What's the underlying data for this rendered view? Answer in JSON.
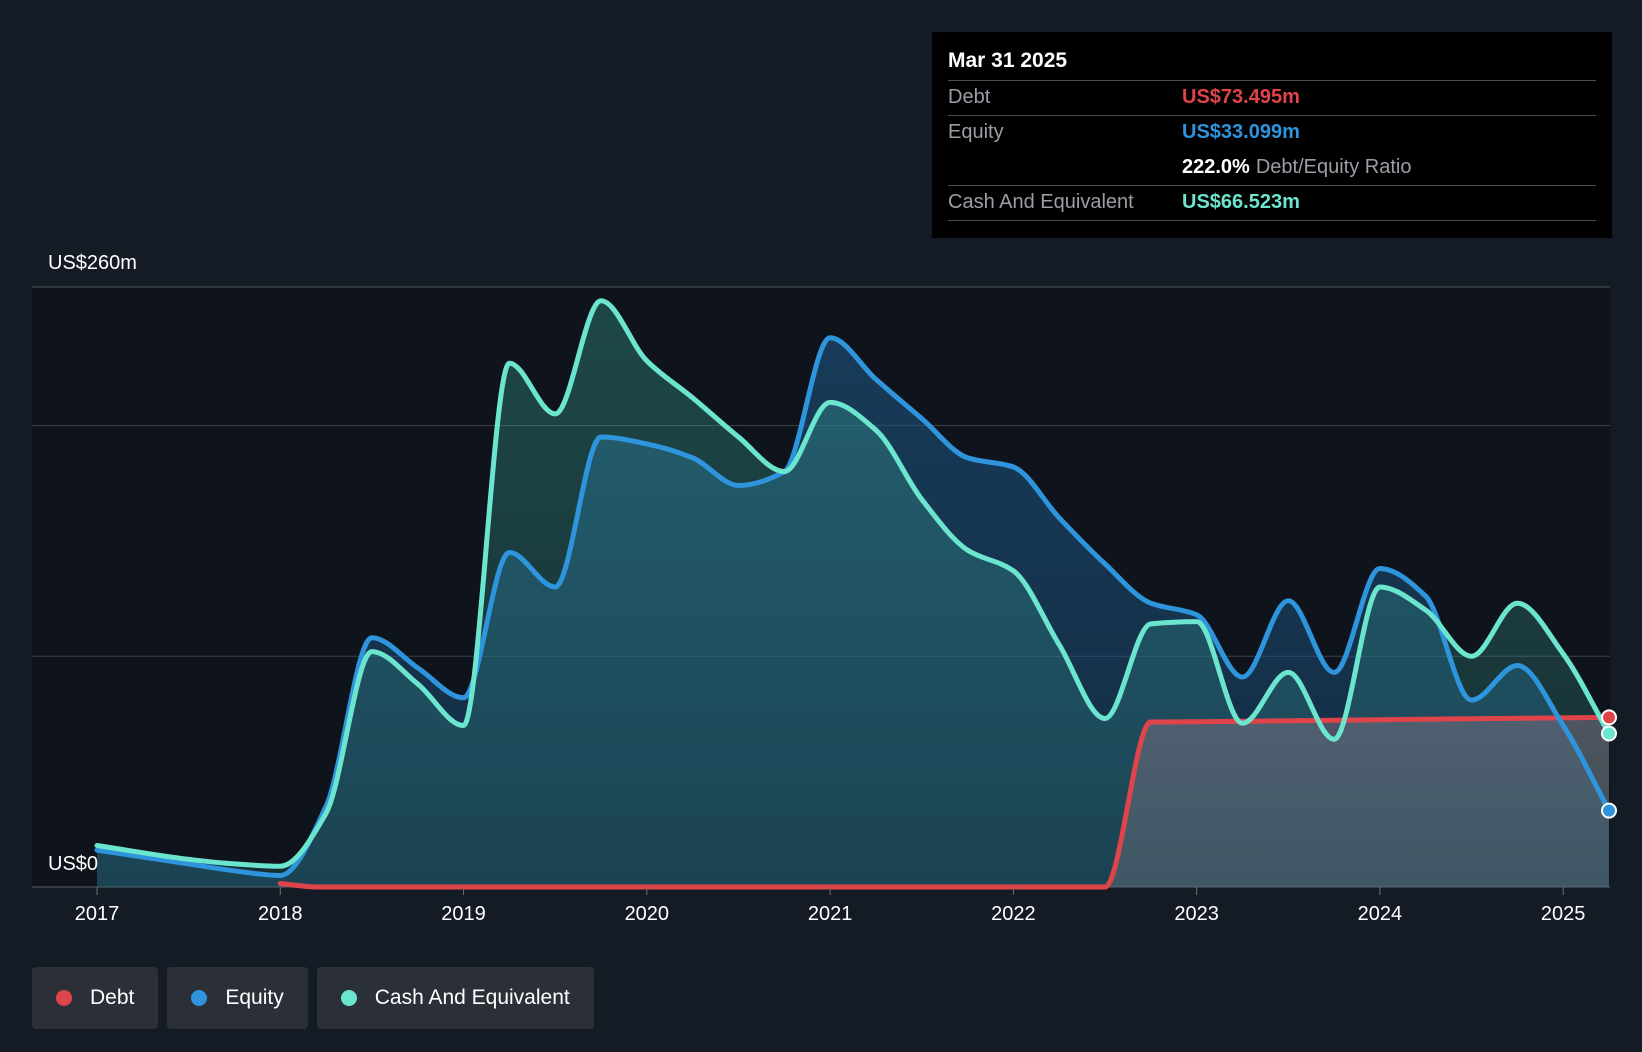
{
  "chart_data": {
    "type": "area",
    "y_top_label": "US$260m",
    "y_zero_label": "US$0",
    "ylim": [
      0,
      260
    ],
    "gridlines": [
      0,
      100,
      200,
      260
    ],
    "x_ticks": [
      "2017",
      "2018",
      "2019",
      "2020",
      "2021",
      "2022",
      "2023",
      "2024",
      "2025"
    ],
    "xlim": [
      2017.0,
      2025.25
    ],
    "series": [
      {
        "name": "Debt",
        "color": "#e0444b",
        "x": [
          2018.0,
          2018.2,
          2022.5,
          2022.75,
          2023.0,
          2024.0,
          2025.25
        ],
        "values": [
          1.5,
          0,
          0,
          71.5,
          71.6,
          72.5,
          73.495
        ]
      },
      {
        "name": "Equity",
        "color": "#2e94dc",
        "x": [
          2017.0,
          2017.5,
          2017.75,
          2018.0,
          2018.25,
          2018.5,
          2018.75,
          2019.0,
          2019.25,
          2019.5,
          2019.75,
          2020.0,
          2020.25,
          2020.5,
          2020.75,
          2021.0,
          2021.25,
          2021.5,
          2021.75,
          2022.0,
          2022.25,
          2022.5,
          2022.75,
          2023.0,
          2023.25,
          2023.5,
          2023.75,
          2024.0,
          2024.25,
          2024.5,
          2024.75,
          2025.0,
          2025.25
        ],
        "values": [
          16,
          10,
          7,
          5,
          35,
          108,
          95,
          82,
          145,
          130,
          195,
          192,
          186,
          174,
          180,
          238,
          220,
          203,
          186,
          182,
          160,
          140,
          123,
          118,
          91,
          124,
          93,
          138,
          126,
          81,
          96,
          70,
          33.099
        ]
      },
      {
        "name": "Cash And Equivalent",
        "color": "#6ce5cf",
        "x": [
          2017.0,
          2017.5,
          2017.75,
          2018.0,
          2018.25,
          2018.5,
          2018.75,
          2019.0,
          2019.25,
          2019.5,
          2019.75,
          2020.0,
          2020.25,
          2020.5,
          2020.75,
          2021.0,
          2021.25,
          2021.5,
          2021.75,
          2022.0,
          2022.25,
          2022.5,
          2022.75,
          2023.0,
          2023.25,
          2023.5,
          2023.75,
          2024.0,
          2024.25,
          2024.5,
          2024.75,
          2025.0,
          2025.25
        ],
        "values": [
          18,
          12,
          10,
          9,
          32,
          102,
          88,
          70,
          227,
          205,
          254,
          228,
          212,
          195,
          180,
          210,
          198,
          168,
          146,
          137,
          105,
          73,
          114,
          115,
          71,
          93,
          64,
          130,
          120,
          100,
          123,
          101,
          66.523
        ]
      }
    ],
    "legend_position": "bottom-left"
  },
  "tooltip": {
    "date": "Mar 31 2025",
    "debt_label": "Debt",
    "debt_value": "US$73.495m",
    "equity_label": "Equity",
    "equity_value": "US$33.099m",
    "ratio_value": "222.0%",
    "ratio_label": "Debt/Equity Ratio",
    "cash_label": "Cash And Equivalent",
    "cash_value": "US$66.523m"
  },
  "legend": {
    "debt": "Debt",
    "equity": "Equity",
    "cash": "Cash And Equivalent"
  },
  "colors": {
    "background": "#151b24",
    "debt": "#e0444b",
    "equity": "#2e94dc",
    "cash": "#6ce5cf"
  }
}
